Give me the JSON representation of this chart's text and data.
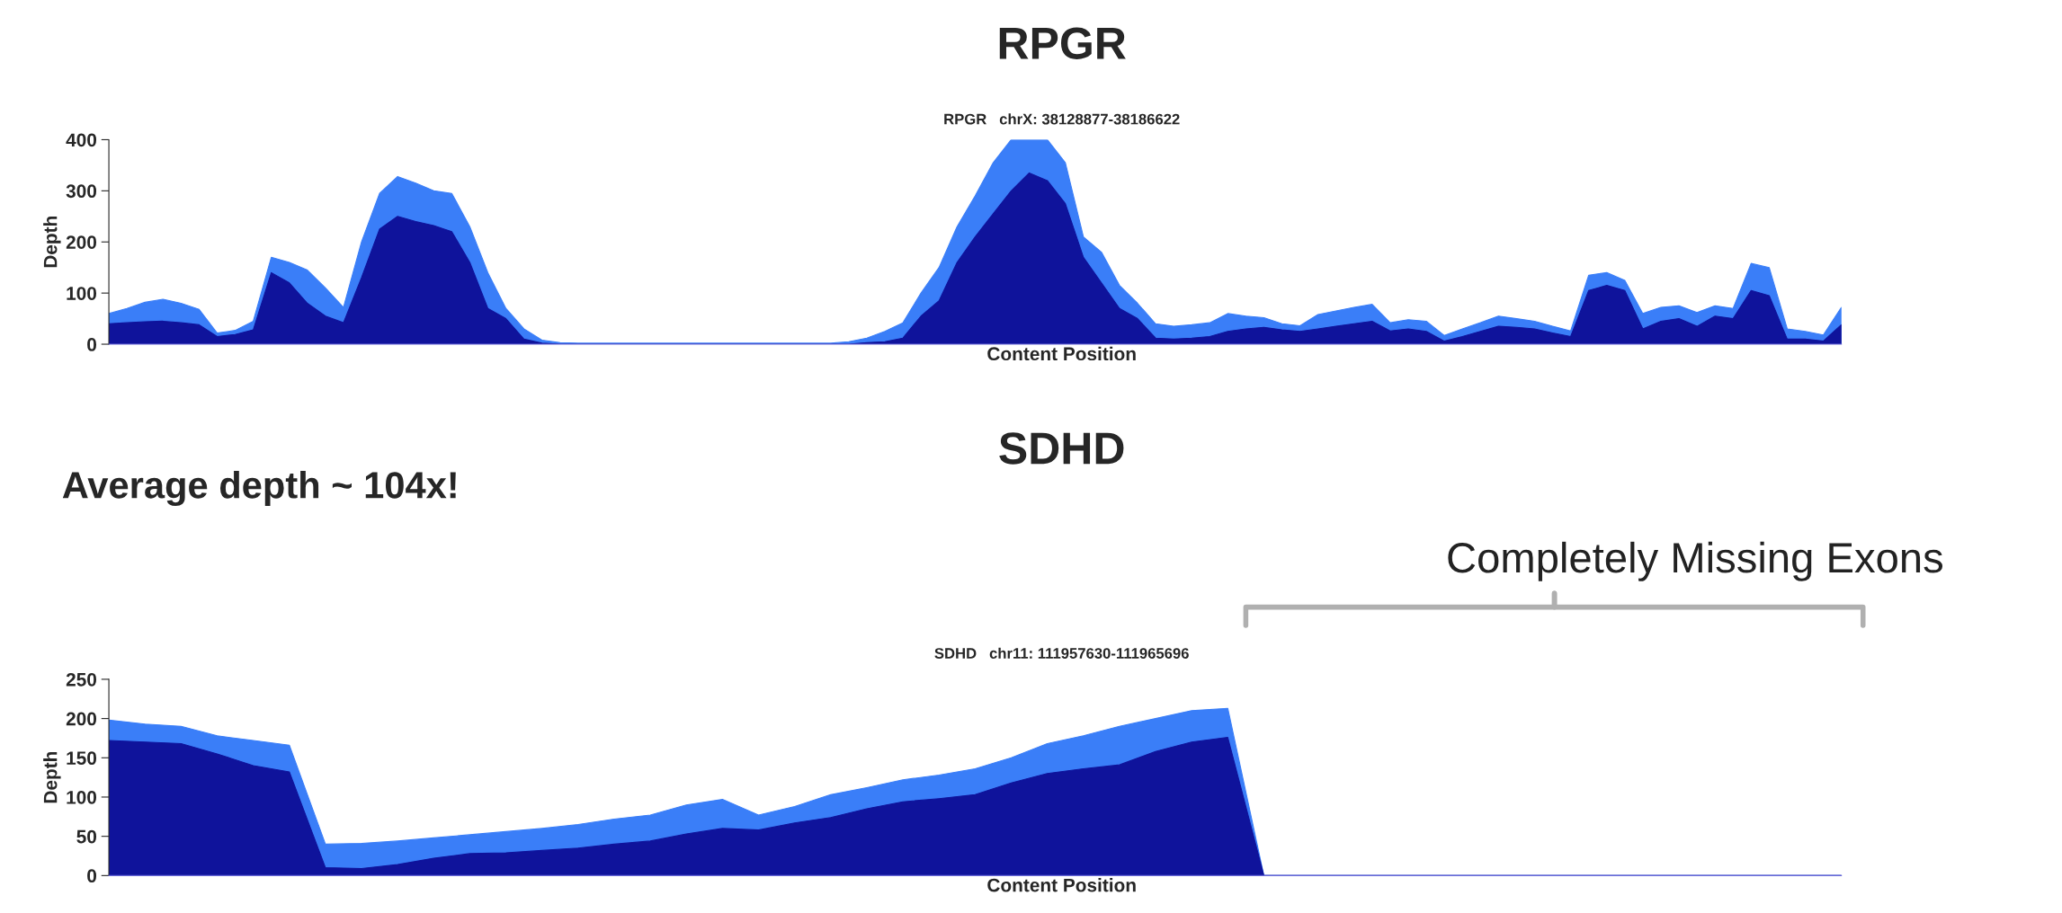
{
  "chart_data": [
    {
      "type": "area",
      "title": "RPGR",
      "subtitle": "RPGR   chrX: 38128877-38186622",
      "xlabel": "Content Position",
      "ylabel": "Depth",
      "categories": [
        null,
        null,
        null,
        null,
        null,
        null,
        null,
        null,
        null,
        null,
        null,
        null,
        null,
        null,
        null,
        null,
        null,
        null,
        null,
        null,
        null,
        null,
        null,
        null,
        null,
        null,
        null,
        null,
        null,
        null,
        null,
        null,
        null,
        null,
        null,
        null,
        null,
        null,
        null,
        null,
        null,
        null,
        null,
        null,
        null,
        null,
        null,
        null,
        null,
        null,
        null,
        null,
        null,
        null,
        null,
        null,
        null,
        null,
        null,
        null,
        null,
        null,
        null,
        null,
        null,
        null,
        null,
        null,
        null,
        null,
        null,
        null,
        null,
        null,
        null,
        null,
        null,
        null,
        null,
        null,
        null,
        null,
        null,
        null,
        null,
        null,
        null,
        null,
        null,
        null,
        null,
        null,
        null,
        null,
        null,
        null,
        null
      ],
      "series": [
        {
          "color": "#3a7ef8",
          "values": [
            60,
            70,
            82,
            88,
            80,
            68,
            22,
            27,
            45,
            170,
            160,
            145,
            110,
            72,
            200,
            295,
            328,
            315,
            300,
            295,
            230,
            140,
            70,
            30,
            8,
            3,
            2,
            2,
            2,
            2,
            2,
            2,
            2,
            2,
            2,
            2,
            2,
            2,
            2,
            2,
            2,
            5,
            12,
            25,
            42,
            100,
            150,
            230,
            290,
            355,
            400,
            400,
            400,
            355,
            210,
            180,
            115,
            80,
            40,
            35,
            38,
            42,
            60,
            55,
            52,
            40,
            36,
            58,
            65,
            72,
            78,
            42,
            48,
            45,
            17,
            30,
            42,
            55,
            50,
            45,
            35,
            26,
            135,
            140,
            125,
            60,
            72,
            75,
            62,
            75,
            70,
            158,
            150,
            30,
            25,
            18,
            72
          ]
        },
        {
          "color": "#0f139b",
          "values": [
            40,
            42,
            44,
            45,
            42,
            38,
            15,
            19,
            28,
            140,
            120,
            80,
            55,
            42,
            130,
            225,
            250,
            240,
            232,
            220,
            160,
            70,
            50,
            10,
            2,
            0,
            0,
            0,
            0,
            0,
            0,
            0,
            0,
            0,
            0,
            0,
            0,
            0,
            0,
            0,
            0,
            0,
            3,
            5,
            12,
            55,
            85,
            160,
            210,
            255,
            300,
            335,
            320,
            275,
            170,
            120,
            70,
            50,
            12,
            10,
            12,
            15,
            25,
            30,
            33,
            28,
            25,
            30,
            35,
            40,
            45,
            26,
            30,
            25,
            6,
            15,
            25,
            35,
            33,
            30,
            22,
            15,
            105,
            115,
            105,
            30,
            45,
            50,
            35,
            55,
            50,
            105,
            95,
            10,
            10,
            6,
            38
          ]
        }
      ],
      "ylim": [
        0,
        400
      ],
      "yticks": [
        0,
        100,
        200,
        300,
        400
      ],
      "tick_labels": "y",
      "annotations": [
        "Average depth ~ 104x!"
      ]
    },
    {
      "type": "area",
      "title": "SDHD",
      "subtitle": "SDHD   chr11: 111957630-111965696",
      "xlabel": "Content Position",
      "ylabel": "Depth",
      "categories": [
        null,
        null,
        null,
        null,
        null,
        null,
        null,
        null,
        null,
        null,
        null,
        null,
        null,
        null,
        null,
        null,
        null,
        null,
        null,
        null,
        null,
        null,
        null,
        null,
        null,
        null,
        null,
        null,
        null,
        null,
        null,
        null,
        null,
        null,
        null,
        null,
        null,
        null,
        null,
        null,
        null,
        null,
        null,
        null,
        null,
        null,
        null,
        null,
        null
      ],
      "series": [
        {
          "color": "#3a7ef8",
          "values": [
            198,
            193,
            190,
            178,
            172,
            166,
            40,
            41,
            44,
            48,
            52,
            56,
            60,
            65,
            72,
            77,
            90,
            97,
            77,
            88,
            103,
            112,
            122,
            128,
            136,
            150,
            168,
            178,
            190,
            200,
            210,
            213,
            0,
            0,
            0,
            0,
            0,
            0,
            0,
            0,
            0,
            0,
            0,
            0,
            0,
            0,
            0,
            0,
            0
          ]
        },
        {
          "color": "#0f139b",
          "values": [
            172,
            170,
            168,
            155,
            140,
            132,
            10,
            9,
            14,
            22,
            28,
            29,
            32,
            35,
            40,
            44,
            53,
            60,
            58,
            67,
            74,
            85,
            94,
            98,
            103,
            118,
            130,
            136,
            141,
            158,
            170,
            176,
            0,
            0,
            0,
            0,
            0,
            0,
            0,
            0,
            0,
            0,
            0,
            0,
            0,
            0,
            0,
            0,
            0
          ]
        }
      ],
      "ylim": [
        0,
        250
      ],
      "yticks": [
        0,
        50,
        100,
        150,
        200,
        250
      ],
      "tick_labels": "y",
      "annotations": [
        "Completely Missing Exons"
      ]
    }
  ]
}
